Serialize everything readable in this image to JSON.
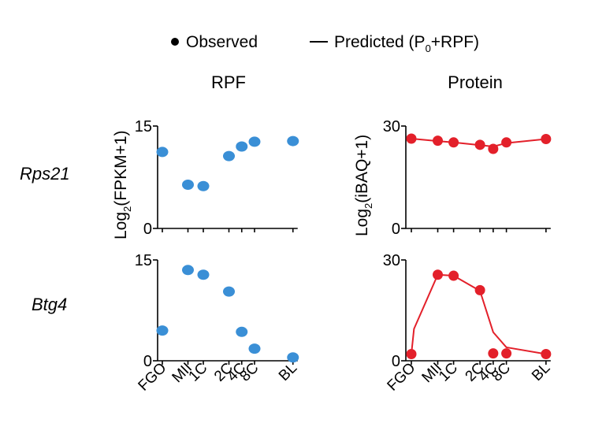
{
  "legend": {
    "observed": "Observed",
    "predicted_prefix": "Predicted (P",
    "predicted_sub": "0",
    "predicted_suffix": "+RPF)"
  },
  "columns": {
    "rpf": "RPF",
    "protein": "Protein"
  },
  "rows": {
    "top": "Rps21",
    "bottom": "Btg4"
  },
  "ylabels": {
    "rpf": {
      "prefix": "Log",
      "sub": "2",
      "suffix": "(FPKM+1)"
    },
    "protein": {
      "prefix": "Log",
      "sub": "2",
      "suffix": "(iBAQ+1)"
    }
  },
  "colors": {
    "rpf": "#3a8fd6",
    "protein": "#e3202a",
    "axis": "#000000"
  },
  "chart_data": [
    {
      "id": "rps21-rpf",
      "type": "scatter",
      "row": "Rps21",
      "column": "RPF",
      "ylabel": "Log2(FPKM+1)",
      "ylim": [
        0,
        15
      ],
      "yticks": [
        0,
        15
      ],
      "categories": [
        "FGO",
        "MII",
        "1C",
        "2C",
        "4C",
        "8C",
        "BL"
      ],
      "x": [
        0,
        1,
        1.6,
        2.6,
        3.1,
        3.6,
        5.1
      ],
      "observed": [
        11.2,
        6.4,
        6.2,
        10.6,
        12.0,
        12.7,
        12.8
      ]
    },
    {
      "id": "rps21-protein",
      "type": "line",
      "row": "Rps21",
      "column": "Protein",
      "ylabel": "Log2(iBAQ+1)",
      "ylim": [
        0,
        30
      ],
      "yticks": [
        0,
        30
      ],
      "categories": [
        "FGO",
        "MII",
        "1C",
        "2C",
        "4C",
        "8C",
        "BL"
      ],
      "x": [
        0,
        1,
        1.6,
        2.6,
        3.1,
        3.6,
        5.1
      ],
      "observed": [
        26.3,
        25.7,
        25.2,
        24.5,
        23.3,
        25.2,
        26.2
      ],
      "predicted": [
        26.3,
        25.6,
        25.2,
        24.4,
        24.0,
        25.0,
        26.2
      ]
    },
    {
      "id": "btg4-rpf",
      "type": "scatter",
      "row": "Btg4",
      "column": "RPF",
      "ylabel": "Log2(FPKM+1)",
      "ylim": [
        0,
        15
      ],
      "yticks": [
        0,
        15
      ],
      "categories": [
        "FGO",
        "MII",
        "1C",
        "2C",
        "4C",
        "8C",
        "BL"
      ],
      "x": [
        0,
        1,
        1.6,
        2.6,
        3.1,
        3.6,
        5.1
      ],
      "observed": [
        4.5,
        13.5,
        12.8,
        10.3,
        4.3,
        1.8,
        0.5
      ]
    },
    {
      "id": "btg4-protein",
      "type": "line",
      "row": "Btg4",
      "column": "Protein",
      "ylabel": "Log2(iBAQ+1)",
      "ylim": [
        0,
        30
      ],
      "yticks": [
        0,
        30
      ],
      "categories": [
        "FGO",
        "MII",
        "1C",
        "2C",
        "4C",
        "8C",
        "BL"
      ],
      "x": [
        0,
        1,
        1.6,
        2.6,
        3.1,
        3.6,
        5.1
      ],
      "observed": [
        2.0,
        25.6,
        25.3,
        21.0,
        2.2,
        2.2,
        2.0
      ],
      "predicted_x": [
        0,
        0.1,
        1,
        1.6,
        2.6,
        3.1,
        3.6,
        5.1
      ],
      "predicted": [
        2.0,
        9.5,
        25.6,
        25.3,
        20.8,
        8.5,
        4.0,
        2.0
      ]
    }
  ]
}
